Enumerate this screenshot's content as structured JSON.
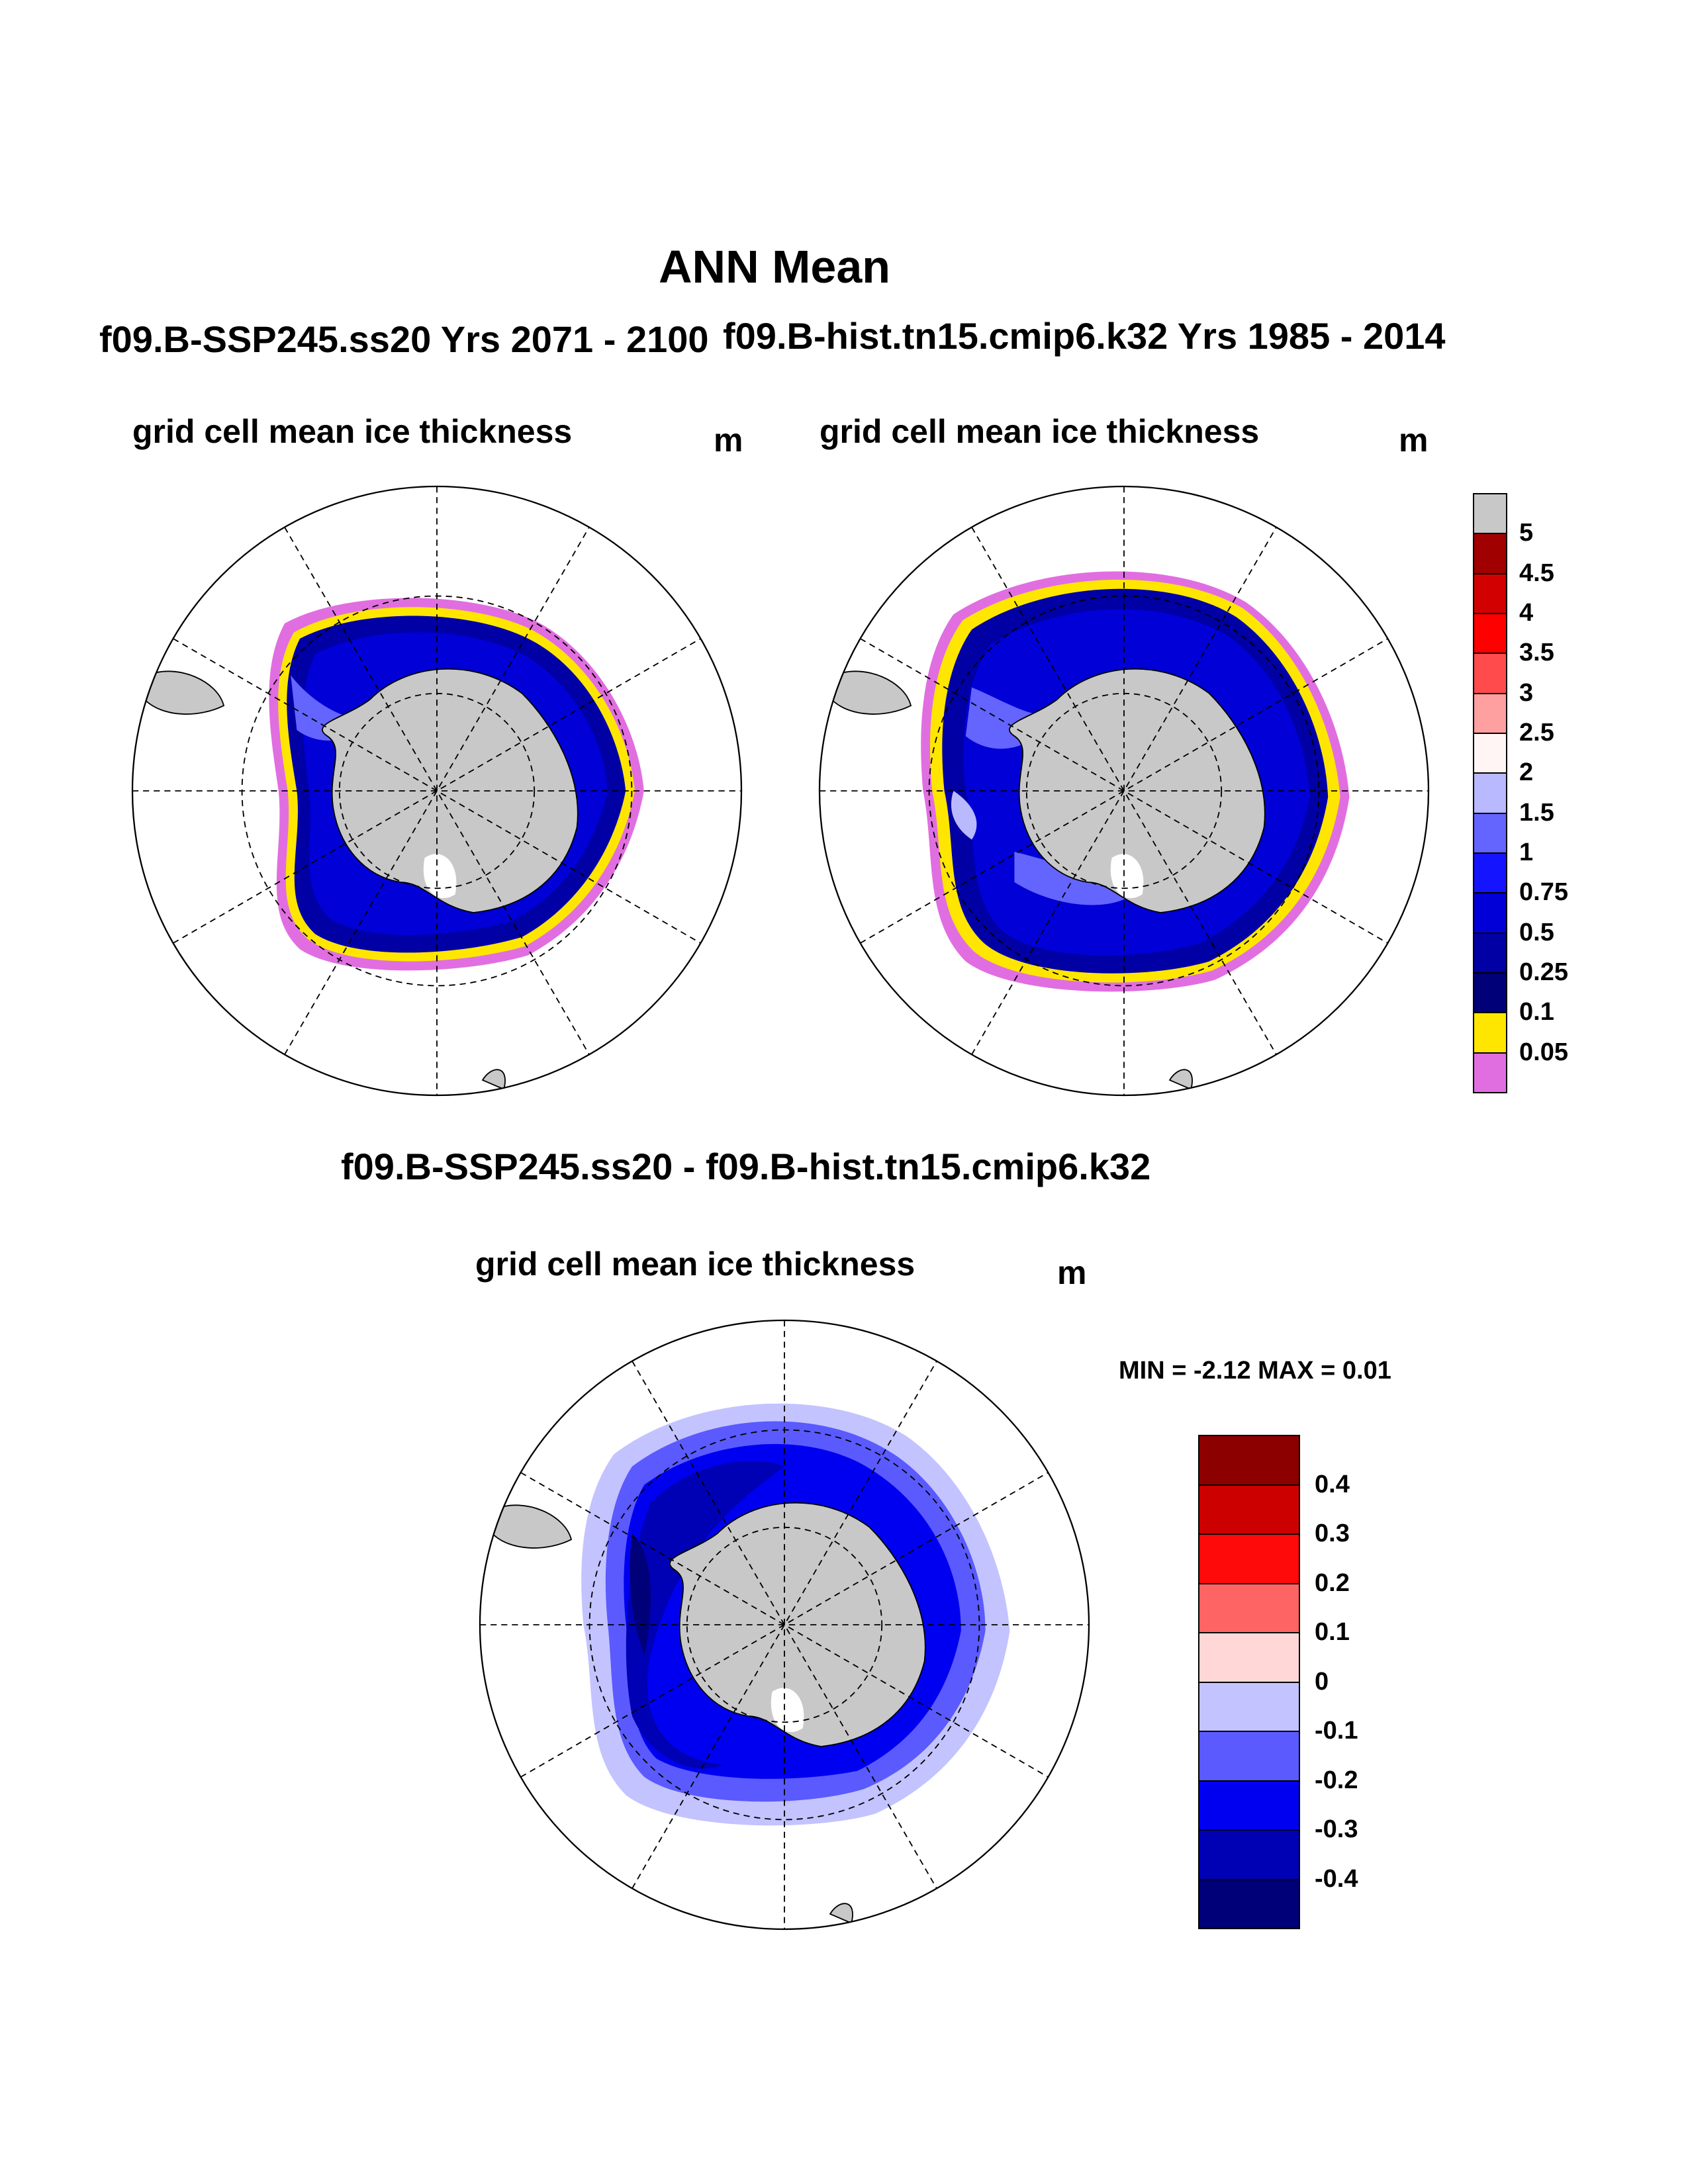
{
  "figure": {
    "title": "ANN Mean",
    "panels": [
      {
        "case": "f09.B-SSP245.ss20  Yrs 2071 - 2100",
        "variable": "grid cell mean ice thickness",
        "units": "m"
      },
      {
        "case": "f09.B-hist.tn15.cmip6.k32  Yrs 1985 - 2014",
        "variable": "grid cell mean ice thickness",
        "units": "m"
      }
    ],
    "difference": {
      "case": "f09.B-SSP245.ss20 - f09.B-hist.tn15.cmip6.k32",
      "variable": "grid cell mean ice thickness",
      "units": "m",
      "stats": "MIN =  -2.12 MAX =   0.01"
    }
  },
  "legend_thickness": {
    "labels": [
      "5",
      "4.5",
      "4",
      "3.5",
      "3",
      "2.5",
      "2",
      "1.5",
      "1",
      "0.75",
      "0.5",
      "0.25",
      "0.1",
      "0.05"
    ],
    "colors": [
      "#c8c8c8",
      "#a00000",
      "#d20000",
      "#ff0000",
      "#ff4b4b",
      "#ffa0a0",
      "#fff5f5",
      "#b9b9ff",
      "#6464ff",
      "#1414ff",
      "#0000d7",
      "#0000a5",
      "#000078",
      "#ffe600",
      "#e16ee1"
    ]
  },
  "legend_difference": {
    "labels": [
      "0.4",
      "0.3",
      "0.2",
      "0.1",
      "0",
      "-0.1",
      "-0.2",
      "-0.3",
      "-0.4"
    ],
    "colors": [
      "#8c0000",
      "#cd0000",
      "#ff0a0a",
      "#ff6464",
      "#ffd7d7",
      "#c3c3ff",
      "#5a5aff",
      "#0000f0",
      "#0000b4",
      "#000078"
    ]
  },
  "map_colors": {
    "land": "#c8c8c8",
    "ice_shelf": "#ffffff",
    "ocean": "#ffffff"
  }
}
